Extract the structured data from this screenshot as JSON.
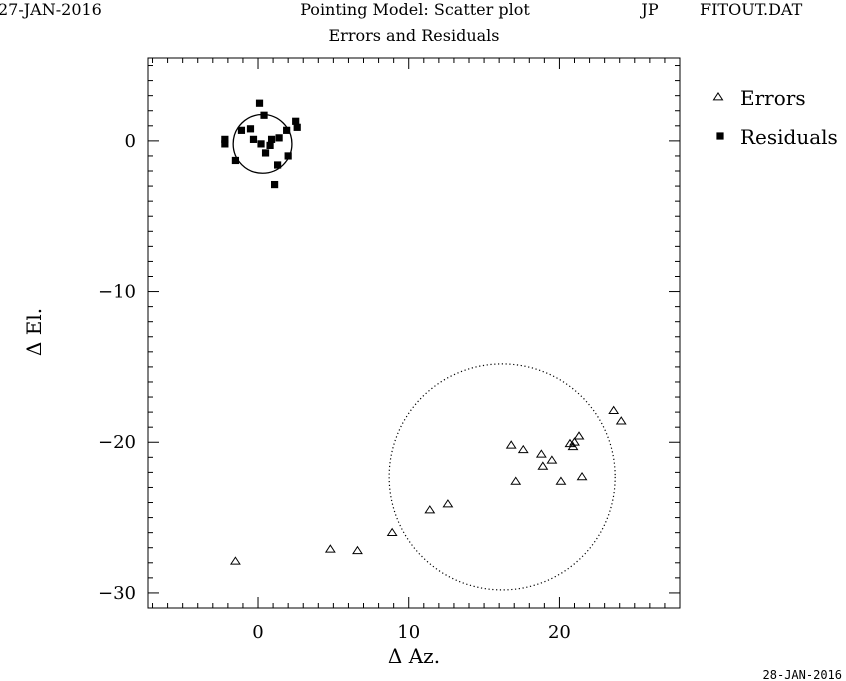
{
  "header": {
    "date_left": "27-JAN-2016",
    "title": "Pointing Model: Scatter plot",
    "initials": "JP",
    "filename": "FITOUT.DAT",
    "subtitle": "Errors and Residuals"
  },
  "footer": {
    "date_right": "28-JAN-2016"
  },
  "chart_data": {
    "type": "scatter",
    "xlabel": "Δ Az.",
    "ylabel": "Δ El.",
    "xlim": [
      -7.3,
      28
    ],
    "ylim": [
      -31,
      5.5
    ],
    "x_ticks": [
      0,
      10,
      20
    ],
    "y_ticks": [
      0,
      -10,
      -20,
      -30
    ],
    "x_tick_labels": [
      "0",
      "10",
      "20"
    ],
    "y_tick_labels": [
      "0",
      "−10",
      "−20",
      "−30"
    ],
    "legend_position": "top-right",
    "series": [
      {
        "name": "Errors",
        "marker": "open-triangle",
        "points": [
          [
            -1.5,
            -27.9
          ],
          [
            4.8,
            -27.1
          ],
          [
            6.6,
            -27.2
          ],
          [
            8.9,
            -26.0
          ],
          [
            11.4,
            -24.5
          ],
          [
            12.6,
            -24.1
          ],
          [
            16.8,
            -20.2
          ],
          [
            17.1,
            -22.6
          ],
          [
            17.6,
            -20.5
          ],
          [
            18.8,
            -20.8
          ],
          [
            18.9,
            -21.6
          ],
          [
            19.5,
            -21.2
          ],
          [
            20.1,
            -22.6
          ],
          [
            20.7,
            -20.1
          ],
          [
            20.9,
            -20.3
          ],
          [
            21.0,
            -20.0
          ],
          [
            21.3,
            -19.6
          ],
          [
            21.5,
            -22.3
          ],
          [
            23.6,
            -17.9
          ],
          [
            24.1,
            -18.6
          ]
        ]
      },
      {
        "name": "Residuals",
        "marker": "filled-square",
        "points": [
          [
            -2.2,
            0.1
          ],
          [
            -2.2,
            -0.2
          ],
          [
            -1.5,
            -1.3
          ],
          [
            -1.1,
            0.7
          ],
          [
            -0.5,
            0.8
          ],
          [
            -0.3,
            0.1
          ],
          [
            0.1,
            2.5
          ],
          [
            0.2,
            -0.2
          ],
          [
            0.4,
            1.7
          ],
          [
            0.5,
            -0.8
          ],
          [
            0.8,
            -0.3
          ],
          [
            0.9,
            0.1
          ],
          [
            1.1,
            -2.9
          ],
          [
            1.3,
            -1.6
          ],
          [
            1.4,
            0.2
          ],
          [
            1.9,
            0.7
          ],
          [
            2.0,
            -1.0
          ],
          [
            2.5,
            1.3
          ],
          [
            2.6,
            0.9
          ]
        ]
      }
    ],
    "circles": [
      {
        "series": "Residuals",
        "cx": 0.3,
        "cy": -0.2,
        "r": 1.95,
        "style": "solid"
      },
      {
        "series": "Errors",
        "cx": 16.2,
        "cy": -22.3,
        "r": 7.5,
        "style": "dotted"
      }
    ]
  }
}
